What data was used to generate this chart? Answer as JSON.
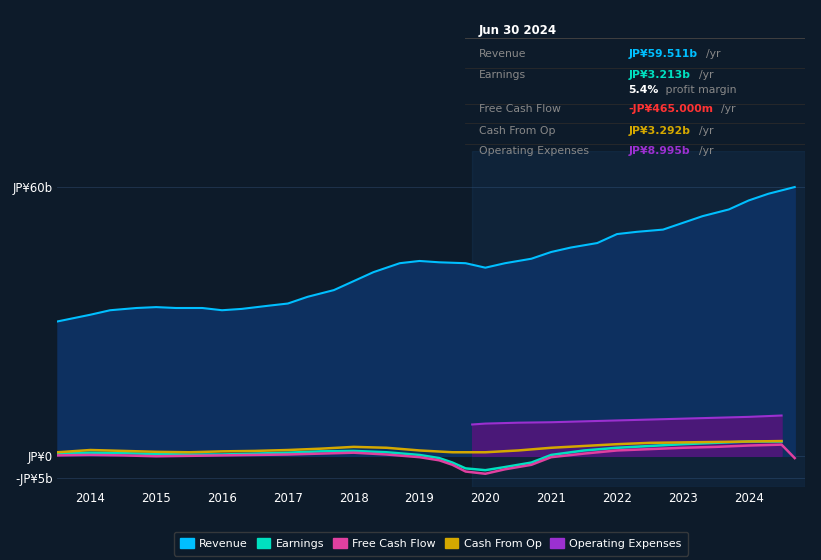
{
  "bg_color": "#0d1b2a",
  "plot_bg_color": "#0d1b2a",
  "grid_color": "#253d5a",
  "yticks_labels": [
    "JP¥60b",
    "JP¥0",
    "-JP¥5b"
  ],
  "yticks_values": [
    60,
    0,
    -5
  ],
  "xlim": [
    2013.5,
    2024.85
  ],
  "ylim": [
    -7,
    68
  ],
  "xlabel_years": [
    2014,
    2015,
    2016,
    2017,
    2018,
    2019,
    2020,
    2021,
    2022,
    2023,
    2024
  ],
  "series": {
    "Revenue": {
      "color": "#00bfff",
      "fill_color": "#0d3060",
      "data_x": [
        2013.5,
        2014.0,
        2014.3,
        2014.7,
        2015.0,
        2015.3,
        2015.7,
        2016.0,
        2016.3,
        2016.7,
        2017.0,
        2017.3,
        2017.7,
        2018.0,
        2018.3,
        2018.7,
        2019.0,
        2019.3,
        2019.7,
        2020.0,
        2020.3,
        2020.7,
        2021.0,
        2021.3,
        2021.7,
        2022.0,
        2022.3,
        2022.7,
        2023.0,
        2023.3,
        2023.7,
        2024.0,
        2024.3,
        2024.7
      ],
      "data_y": [
        30,
        31.5,
        32.5,
        33,
        33.2,
        33.0,
        33.0,
        32.5,
        32.8,
        33.5,
        34,
        35.5,
        37,
        39,
        41,
        43,
        43.5,
        43.2,
        43.0,
        42.0,
        43.0,
        44.0,
        45.5,
        46.5,
        47.5,
        49.5,
        50.0,
        50.5,
        52.0,
        53.5,
        55.0,
        57.0,
        58.5,
        60.0
      ]
    },
    "Earnings": {
      "color": "#00e0c0",
      "data_x": [
        2013.5,
        2014.0,
        2014.5,
        2015.0,
        2015.5,
        2016.0,
        2016.5,
        2017.0,
        2017.5,
        2018.0,
        2018.5,
        2019.0,
        2019.3,
        2019.5,
        2019.7,
        2020.0,
        2020.3,
        2020.7,
        2021.0,
        2021.5,
        2022.0,
        2022.5,
        2023.0,
        2023.5,
        2024.0,
        2024.5
      ],
      "data_y": [
        0.5,
        0.7,
        0.6,
        0.4,
        0.3,
        0.3,
        0.5,
        0.7,
        1.0,
        1.1,
        0.8,
        0.2,
        -0.5,
        -1.5,
        -2.8,
        -3.2,
        -2.5,
        -1.5,
        0.2,
        1.2,
        1.8,
        2.2,
        2.6,
        2.9,
        3.2,
        3.2
      ]
    },
    "Free Cash Flow": {
      "color": "#e040a0",
      "data_x": [
        2013.5,
        2014.0,
        2014.5,
        2015.0,
        2015.5,
        2016.0,
        2016.5,
        2017.0,
        2017.5,
        2018.0,
        2018.5,
        2019.0,
        2019.3,
        2019.5,
        2019.7,
        2020.0,
        2020.3,
        2020.7,
        2021.0,
        2021.5,
        2022.0,
        2022.5,
        2023.0,
        2023.5,
        2024.0,
        2024.5,
        2024.7
      ],
      "data_y": [
        0.1,
        0.2,
        0.1,
        -0.1,
        0.0,
        0.1,
        0.2,
        0.3,
        0.5,
        0.7,
        0.3,
        -0.3,
        -1.0,
        -2.0,
        -3.5,
        -4.0,
        -3.0,
        -2.0,
        -0.3,
        0.5,
        1.2,
        1.5,
        1.8,
        2.0,
        2.3,
        2.5,
        -0.5
      ]
    },
    "Cash From Op": {
      "color": "#d4a800",
      "data_x": [
        2013.5,
        2014.0,
        2014.5,
        2015.0,
        2015.5,
        2016.0,
        2016.5,
        2017.0,
        2017.5,
        2018.0,
        2018.5,
        2019.0,
        2019.5,
        2020.0,
        2020.5,
        2021.0,
        2021.5,
        2022.0,
        2022.5,
        2023.0,
        2023.5,
        2024.0,
        2024.5
      ],
      "data_y": [
        0.8,
        1.3,
        1.1,
        0.9,
        0.8,
        1.0,
        1.1,
        1.3,
        1.6,
        2.0,
        1.8,
        1.2,
        0.8,
        0.8,
        1.2,
        1.8,
        2.2,
        2.6,
        2.9,
        3.0,
        3.1,
        3.2,
        3.3
      ]
    },
    "Operating Expenses": {
      "color": "#9b30d0",
      "fill_color": "#4a1878",
      "data_x": [
        2019.8,
        2020.0,
        2020.5,
        2021.0,
        2021.5,
        2022.0,
        2022.5,
        2023.0,
        2023.5,
        2024.0,
        2024.5
      ],
      "data_y": [
        7.0,
        7.2,
        7.4,
        7.5,
        7.7,
        7.9,
        8.1,
        8.3,
        8.5,
        8.7,
        9.0
      ]
    }
  },
  "tooltip": {
    "title": "Jun 30 2024",
    "rows": [
      {
        "label": "Revenue",
        "value": "JP¥59.511b",
        "unit": "/yr",
        "value_color": "#00bfff"
      },
      {
        "label": "Earnings",
        "value": "JP¥3.213b",
        "unit": "/yr",
        "value_color": "#00e0c0"
      },
      {
        "label": "",
        "value": "5.4%",
        "unit": " profit margin",
        "value_color": "#ffffff"
      },
      {
        "label": "Free Cash Flow",
        "value": "-JP¥465.000m",
        "unit": "/yr",
        "value_color": "#ff3333"
      },
      {
        "label": "Cash From Op",
        "value": "JP¥3.292b",
        "unit": "/yr",
        "value_color": "#d4a800"
      },
      {
        "label": "Operating Expenses",
        "value": "JP¥8.995b",
        "unit": "/yr",
        "value_color": "#9b30d0"
      }
    ]
  },
  "legend_items": [
    {
      "label": "Revenue",
      "color": "#00bfff"
    },
    {
      "label": "Earnings",
      "color": "#00e0c0"
    },
    {
      "label": "Free Cash Flow",
      "color": "#e040a0"
    },
    {
      "label": "Cash From Op",
      "color": "#d4a800"
    },
    {
      "label": "Operating Expenses",
      "color": "#9b30d0"
    }
  ]
}
